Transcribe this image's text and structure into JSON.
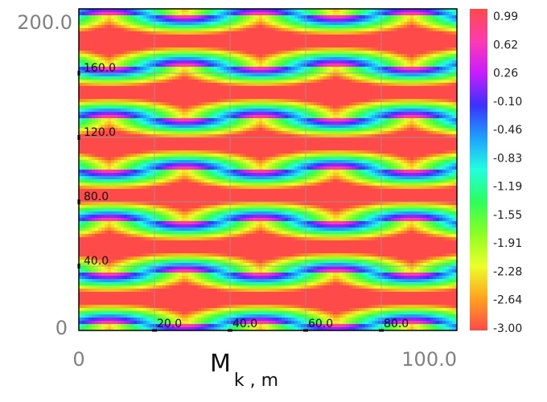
{
  "chart_data": {
    "type": "heatmap",
    "title": "",
    "xlabel": "M",
    "xlabel_subscript": "k , m",
    "ylabel": "",
    "xlim": [
      0,
      100
    ],
    "ylim": [
      0,
      200
    ],
    "x_end_labels": [
      "0",
      "100.0"
    ],
    "y_end_labels": [
      "0",
      "200.0"
    ],
    "x_inner_ticks": [
      {
        "value": 20,
        "label": "20.0"
      },
      {
        "value": 40,
        "label": "40.0"
      },
      {
        "value": 60,
        "label": "60.0"
      },
      {
        "value": 80,
        "label": "80.0"
      }
    ],
    "y_inner_ticks": [
      {
        "value": 40,
        "label": "40.0"
      },
      {
        "value": 80,
        "label": "80.0"
      },
      {
        "value": 120,
        "label": "120.0"
      },
      {
        "value": 160,
        "label": "160.0"
      }
    ],
    "grid": true,
    "colorscale": "rainbow (red high / red low, through magenta, blue, cyan, green, yellow, orange)",
    "colorbar": {
      "min": -3.0,
      "max": 0.99,
      "ticks": [
        "0.99",
        "0.62",
        "0.26",
        "-0.10",
        "-0.46",
        "-0.83",
        "-1.19",
        "-1.55",
        "-1.91",
        "-2.28",
        "-2.64",
        "-3.00"
      ]
    },
    "pattern": {
      "description": "periodic field: horizontal bands along y, red elliptical maxima alternating between two x-phases",
      "y_period": 32,
      "x_period": 40,
      "y_offset": 4,
      "x_offset": 8
    }
  }
}
